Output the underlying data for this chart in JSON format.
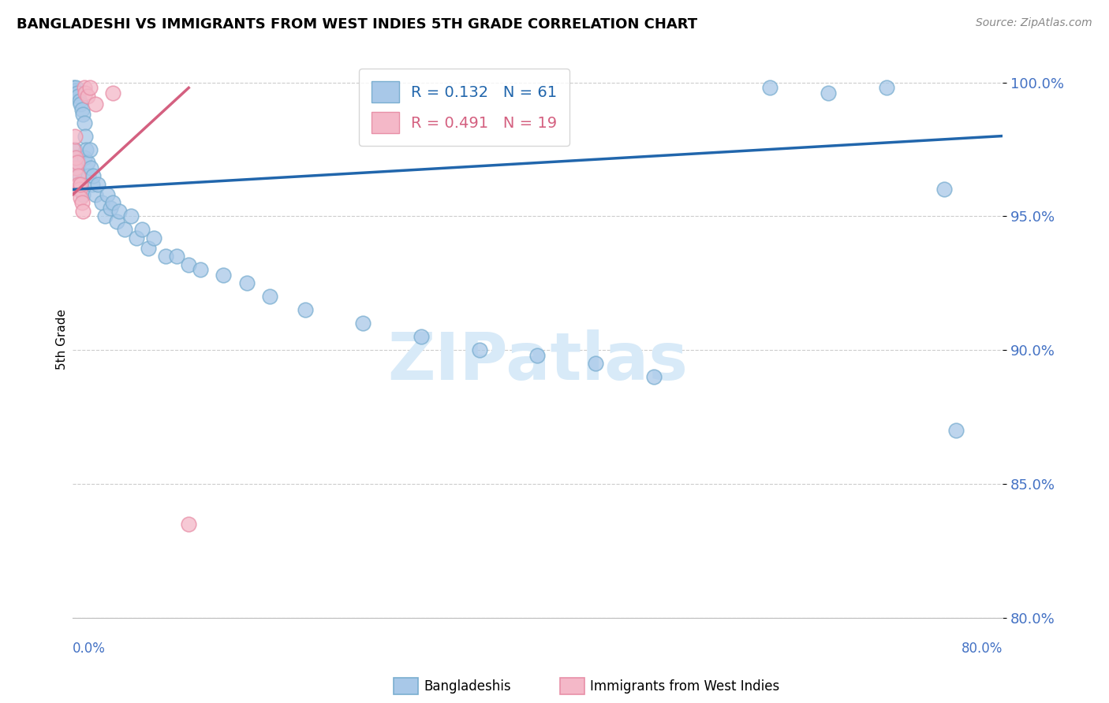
{
  "title": "BANGLADESHI VS IMMIGRANTS FROM WEST INDIES 5TH GRADE CORRELATION CHART",
  "source": "Source: ZipAtlas.com",
  "ylabel": "5th Grade",
  "r_blue": 0.132,
  "n_blue": 61,
  "r_pink": 0.491,
  "n_pink": 19,
  "blue_scatter_color": "#a8c8e8",
  "blue_scatter_edge": "#7aaed0",
  "pink_scatter_color": "#f4b8c8",
  "pink_scatter_edge": "#e890a8",
  "blue_line_color": "#2166ac",
  "pink_line_color": "#d46080",
  "legend_label_blue": "Bangladeshis",
  "legend_label_pink": "Immigrants from West Indies",
  "watermark_color": "#d8eaf8",
  "xlim": [
    0.0,
    0.8
  ],
  "ylim": [
    0.8,
    1.008
  ],
  "yticks": [
    0.8,
    0.85,
    0.9,
    0.95,
    1.0
  ],
  "ytick_labels": [
    "80.0%",
    "85.0%",
    "90.0%",
    "95.0%",
    "100.0%"
  ],
  "blue_x": [
    0.001,
    0.002,
    0.002,
    0.003,
    0.003,
    0.004,
    0.004,
    0.005,
    0.005,
    0.006,
    0.006,
    0.007,
    0.007,
    0.008,
    0.008,
    0.009,
    0.009,
    0.01,
    0.01,
    0.011,
    0.012,
    0.013,
    0.014,
    0.015,
    0.016,
    0.017,
    0.018,
    0.02,
    0.022,
    0.025,
    0.028,
    0.03,
    0.033,
    0.035,
    0.038,
    0.04,
    0.045,
    0.05,
    0.055,
    0.06,
    0.065,
    0.07,
    0.08,
    0.09,
    0.1,
    0.11,
    0.13,
    0.15,
    0.17,
    0.2,
    0.25,
    0.3,
    0.35,
    0.4,
    0.45,
    0.5,
    0.6,
    0.65,
    0.7,
    0.75,
    0.76
  ],
  "blue_y": [
    0.998,
    0.997,
    0.975,
    0.998,
    0.97,
    0.996,
    0.972,
    0.995,
    0.968,
    0.993,
    0.965,
    0.992,
    0.962,
    0.99,
    0.96,
    0.988,
    0.958,
    0.985,
    0.972,
    0.98,
    0.975,
    0.97,
    0.965,
    0.975,
    0.968,
    0.962,
    0.965,
    0.958,
    0.962,
    0.955,
    0.95,
    0.958,
    0.953,
    0.955,
    0.948,
    0.952,
    0.945,
    0.95,
    0.942,
    0.945,
    0.938,
    0.942,
    0.935,
    0.935,
    0.932,
    0.93,
    0.928,
    0.925,
    0.92,
    0.915,
    0.91,
    0.905,
    0.9,
    0.898,
    0.895,
    0.89,
    0.998,
    0.996,
    0.998,
    0.96,
    0.87
  ],
  "pink_x": [
    0.001,
    0.002,
    0.003,
    0.003,
    0.004,
    0.005,
    0.005,
    0.006,
    0.007,
    0.007,
    0.008,
    0.009,
    0.01,
    0.011,
    0.013,
    0.015,
    0.02,
    0.035,
    0.1
  ],
  "pink_y": [
    0.975,
    0.98,
    0.968,
    0.972,
    0.97,
    0.965,
    0.962,
    0.96,
    0.957,
    0.962,
    0.955,
    0.952,
    0.998,
    0.996,
    0.995,
    0.998,
    0.992,
    0.996,
    0.835
  ],
  "blue_trendline_x": [
    0.0,
    0.8
  ],
  "blue_trendline_y": [
    0.96,
    0.98
  ],
  "pink_trendline_x": [
    0.0,
    0.1
  ],
  "pink_trendline_y": [
    0.958,
    0.998
  ]
}
